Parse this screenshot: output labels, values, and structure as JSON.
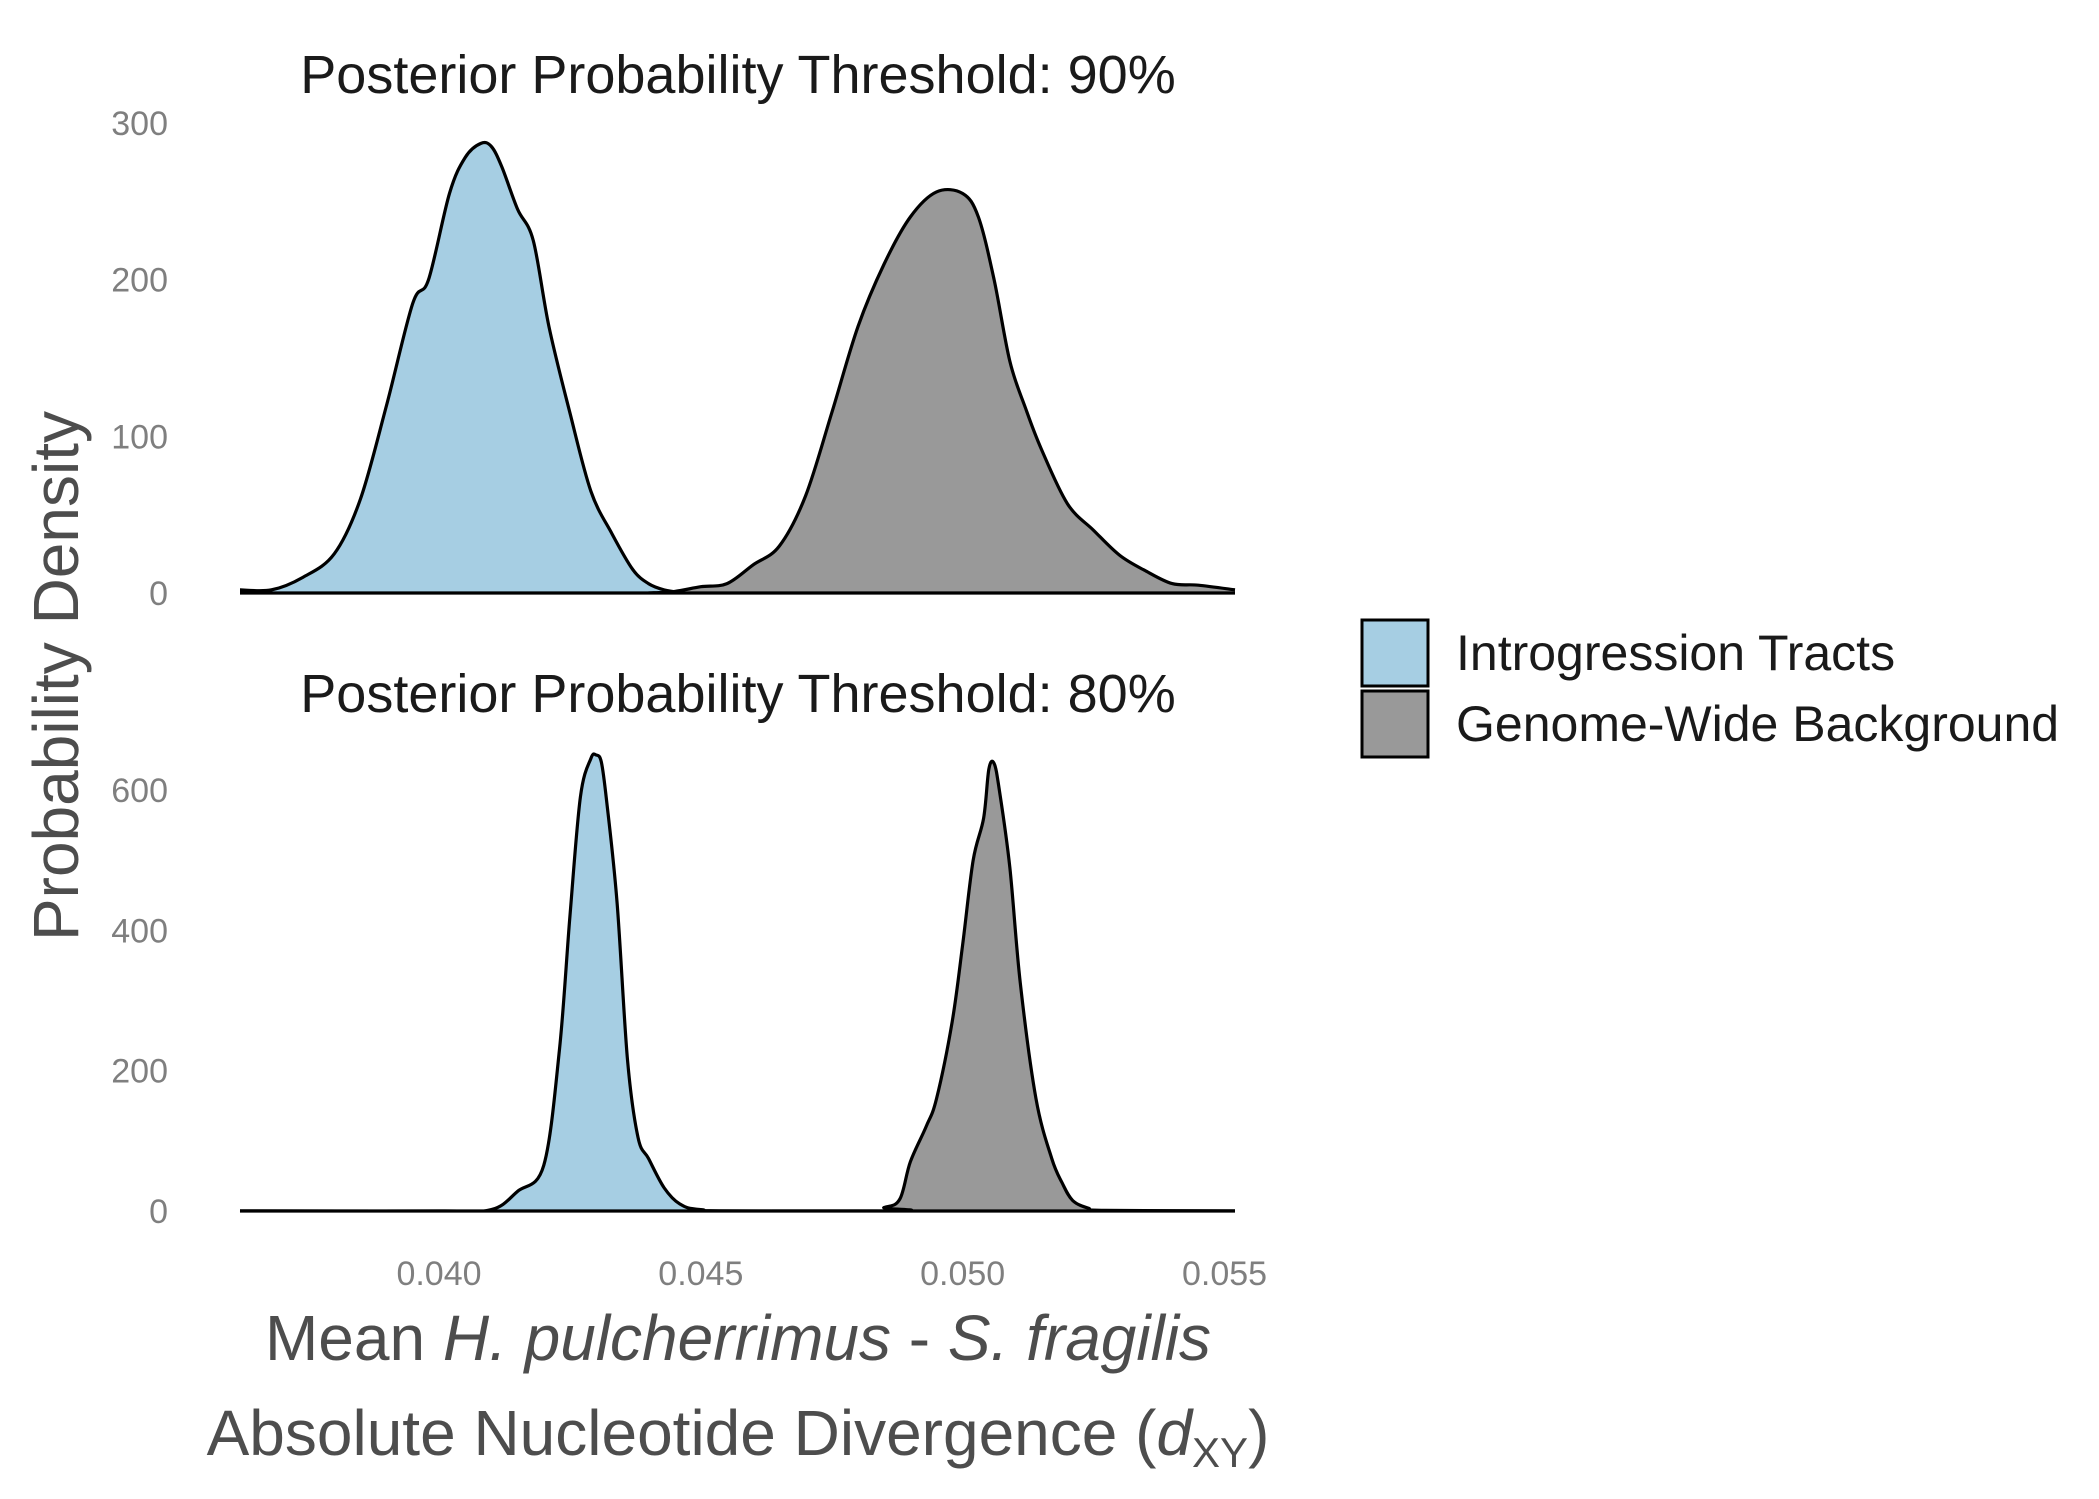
{
  "chart_data": {
    "type": "area",
    "chart_kind": "density",
    "ylabel": "Probability Density",
    "xlabel_line1": {
      "prefix": "Mean ",
      "species1": "H. pulcherrimus",
      "separator": " - ",
      "species2": "S. fragilis"
    },
    "xlabel_line2": {
      "prefix": "Absolute Nucleotide Divergence (",
      "symbol": "d",
      "subscript": "XY",
      "suffix": ")"
    },
    "xlim": [
      0.0362,
      0.0552
    ],
    "x_ticks": [
      "0.040",
      "0.045",
      "0.050",
      "0.055"
    ],
    "grid": false,
    "legend_position": "right",
    "legend": [
      {
        "label": "Introgression Tracts",
        "color": "#a6cee3"
      },
      {
        "label": "Genome-Wide Background",
        "color": "#999999"
      }
    ],
    "panels": [
      {
        "title": "Posterior Probability Threshold: 90%",
        "ylim": [
          0,
          300
        ],
        "y_ticks": [
          "0",
          "100",
          "200",
          "300"
        ],
        "series": [
          {
            "name": "Introgression Tracts",
            "color": "#a6cee3",
            "x": [
              0.0362,
              0.0368,
              0.0374,
              0.038,
              0.0385,
              0.039,
              0.0395,
              0.0398,
              0.0402,
              0.0405,
              0.0408,
              0.041,
              0.0412,
              0.0415,
              0.0418,
              0.0421,
              0.0425,
              0.0429,
              0.0433,
              0.0437,
              0.044,
              0.0443,
              0.0446,
              0.045,
              0.0455,
              0.046,
              0.0465
            ],
            "y": [
              2,
              2,
              10,
              25,
              60,
              120,
              185,
              200,
              255,
              278,
              287,
              285,
              272,
              245,
              225,
              170,
              115,
              65,
              38,
              15,
              6,
              2,
              0.5,
              0,
              0,
              0,
              0
            ]
          },
          {
            "name": "Genome-Wide Background",
            "color": "#999999",
            "x": [
              0.044,
              0.0445,
              0.045,
              0.0455,
              0.046,
              0.0465,
              0.047,
              0.0475,
              0.048,
              0.0485,
              0.049,
              0.0495,
              0.05,
              0.0503,
              0.0506,
              0.0509,
              0.0512,
              0.0515,
              0.052,
              0.0525,
              0.053,
              0.0535,
              0.054,
              0.0545,
              0.0552
            ],
            "y": [
              0,
              1,
              4,
              6,
              18,
              30,
              62,
              115,
              170,
              210,
              240,
              256,
              255,
              240,
              200,
              148,
              118,
              92,
              57,
              40,
              24,
              14,
              6,
              5,
              2
            ]
          }
        ]
      },
      {
        "title": "Posterior Probability Threshold: 80%",
        "ylim": [
          0,
          650
        ],
        "y_ticks": [
          "0",
          "200",
          "400",
          "600"
        ],
        "series": [
          {
            "name": "Introgression Tracts",
            "color": "#a6cee3",
            "x": [
              0.0362,
              0.04,
              0.041,
              0.0415,
              0.042,
              0.0423,
              0.0425,
              0.0427,
              0.0429,
              0.043,
              0.0431,
              0.0432,
              0.0434,
              0.0436,
              0.0438,
              0.044,
              0.0443,
              0.0446,
              0.045,
              0.0462,
              0.0552
            ],
            "y": [
              0,
              0,
              2,
              28,
              65,
              230,
              420,
              590,
              645,
              650,
              640,
              585,
              440,
              215,
              105,
              75,
              33,
              10,
              2,
              0,
              0
            ]
          },
          {
            "name": "Genome-Wide Background",
            "color": "#999999",
            "x": [
              0.0362,
              0.048,
              0.0485,
              0.0488,
              0.049,
              0.0493,
              0.0495,
              0.0498,
              0.05,
              0.0502,
              0.0504,
              0.0505,
              0.0506,
              0.0507,
              0.0509,
              0.0511,
              0.0514,
              0.0517,
              0.0519,
              0.0521,
              0.0524,
              0.0527,
              0.0552
            ],
            "y": [
              0,
              0,
              5,
              17,
              70,
              120,
              160,
              270,
              380,
              500,
              560,
              630,
              638,
              600,
              490,
              325,
              160,
              75,
              40,
              15,
              4,
              1,
              0
            ]
          }
        ]
      }
    ]
  }
}
